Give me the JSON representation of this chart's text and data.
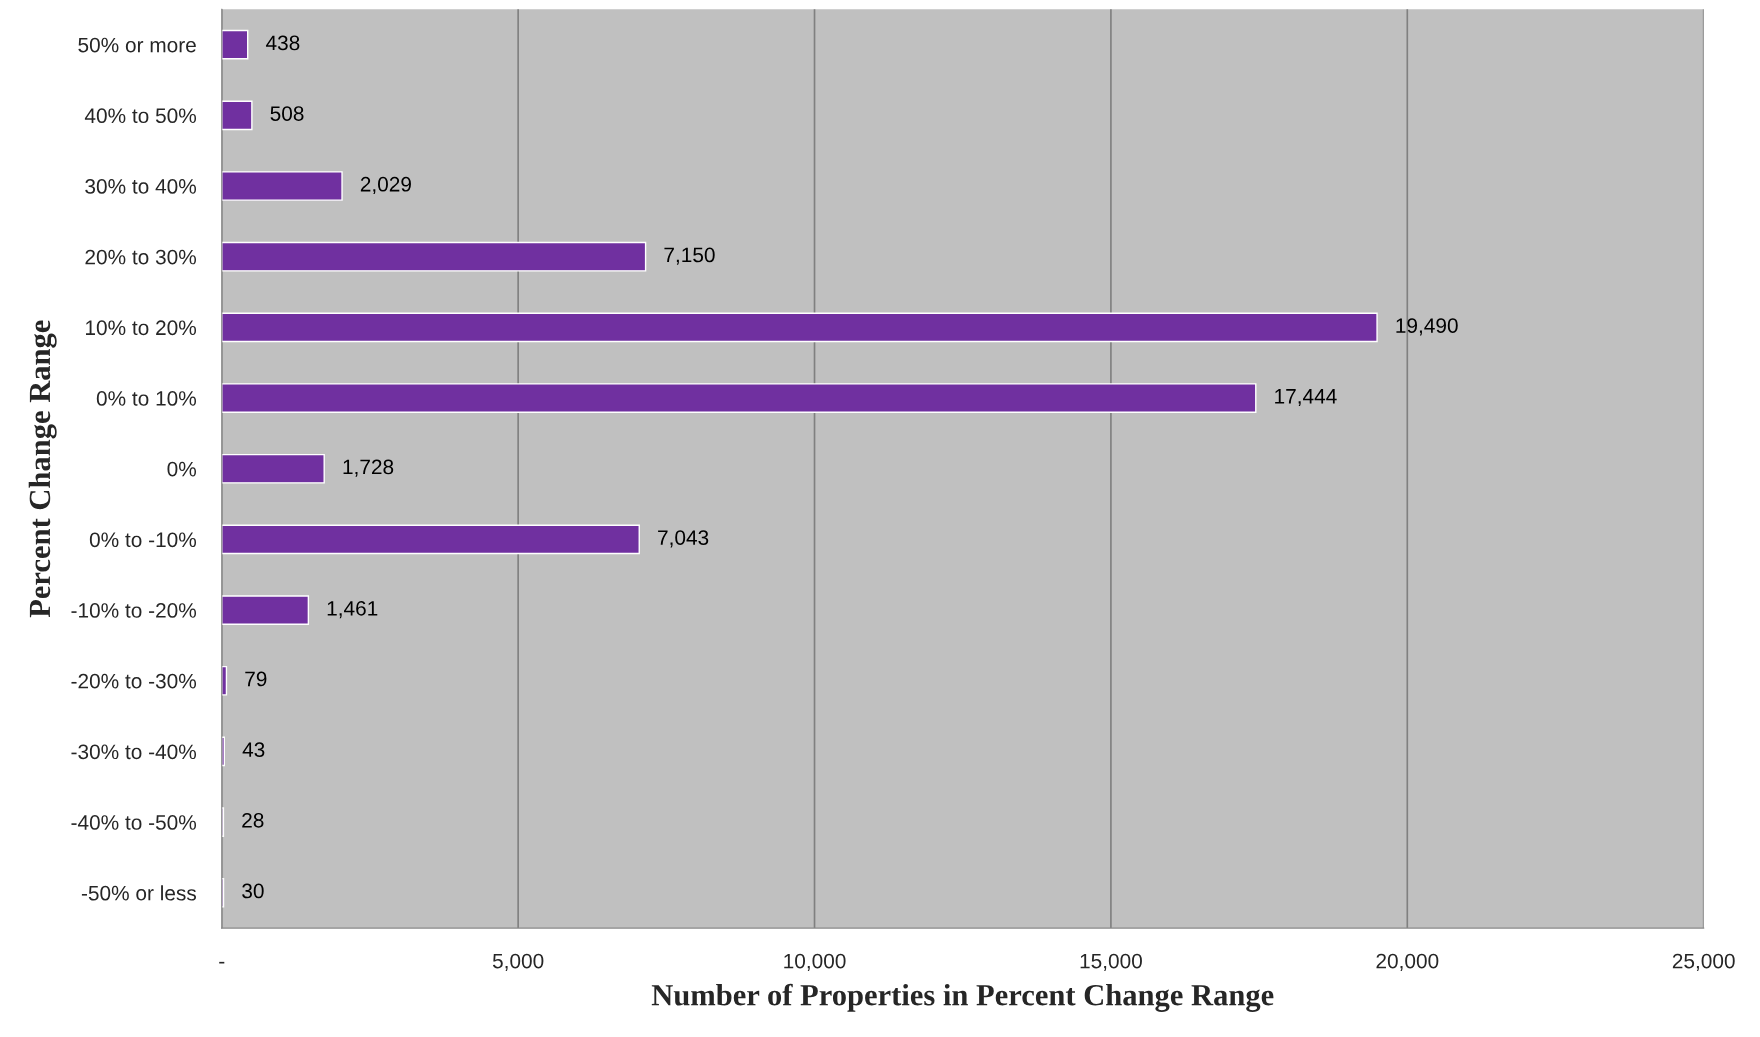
{
  "chart_data": {
    "type": "bar",
    "orientation": "horizontal",
    "xlabel": "Number of Properties in Percent Change Range",
    "ylabel": "Percent Change Range",
    "categories": [
      "50% or more",
      "40% to 50%",
      "30% to 40%",
      "20% to 30%",
      "10% to 20%",
      "0% to 10%",
      "0%",
      "0% to -10%",
      "-10% to -20%",
      "-20% to -30%",
      "-30% to -40%",
      "-40% to -50%",
      "-50% or less"
    ],
    "values": [
      438,
      508,
      2029,
      7150,
      19490,
      17444,
      1728,
      7043,
      1461,
      79,
      43,
      28,
      30
    ],
    "value_labels": [
      "438",
      "508",
      "2,029",
      "7,150",
      "19,490",
      "17,444",
      "1,728",
      "7,043",
      "1,461",
      "79",
      "43",
      "28",
      "30"
    ],
    "color": "#7030a0",
    "xlim": [
      0,
      25000
    ],
    "xticks": [
      {
        "value": 0,
        "label": "-"
      },
      {
        "value": 5000,
        "label": "5,000"
      },
      {
        "value": 10000,
        "label": "10,000"
      },
      {
        "value": 15000,
        "label": "15,000"
      },
      {
        "value": 20000,
        "label": "20,000"
      },
      {
        "value": 25000,
        "label": "25,000"
      }
    ],
    "grid": "x",
    "legend": false
  }
}
